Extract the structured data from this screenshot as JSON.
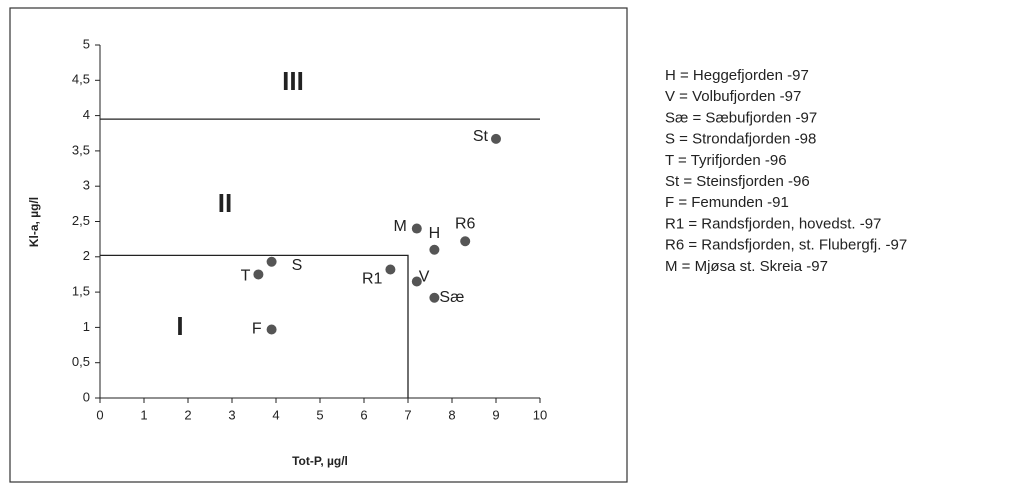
{
  "chart_data": {
    "type": "scatter",
    "x_label": "Tot-P, µg/l",
    "y_label": "Kl-a, µg/l",
    "labels": [
      "St",
      "M",
      "H",
      "R6",
      "R1",
      "V",
      "Sæ",
      "T",
      "S",
      "F"
    ],
    "x": [
      9.0,
      7.2,
      7.6,
      8.3,
      6.6,
      7.2,
      7.6,
      3.6,
      3.9,
      3.9
    ],
    "y": [
      3.67,
      2.4,
      2.1,
      2.22,
      1.82,
      1.65,
      1.42,
      1.75,
      1.93,
      0.97
    ],
    "color": "#555555",
    "xlim": [
      0,
      10
    ],
    "xticks": [
      0,
      1,
      2,
      3,
      4,
      5,
      6,
      7,
      8,
      9,
      10
    ],
    "ylim": [
      0,
      5
    ],
    "yticks": [
      0,
      {
        "value": 0.5,
        "label": "0,5"
      },
      1,
      {
        "value": 1.5,
        "label": "1,5"
      },
      2,
      {
        "value": 2.5,
        "label": "2,5"
      },
      3,
      {
        "value": 3.5,
        "label": "3,5"
      },
      4,
      {
        "value": 4.5,
        "label": "4,5"
      },
      5
    ],
    "region_lines": [
      {
        "x": [
          0,
          10
        ],
        "y": [
          3.95,
          3.95
        ]
      },
      {
        "x": [
          0,
          7,
          7
        ],
        "y": [
          2.02,
          2.02,
          0
        ]
      }
    ],
    "regions": [
      "III",
      "II",
      "I"
    ],
    "legend": [
      "H = Heggefjorden -97",
      "V = Volbufjorden -97",
      "Sæ = Sæbufjorden -97",
      "S = Strondafjorden -98",
      "T = Tyrifjorden -96",
      "St = Steinsfjorden -96",
      "F = Femunden -91",
      "R1 = Randsfjorden, hovedst.  -97",
      "R6 = Randsfjorden, st. Flubergfj. -97",
      "M = Mjøsa st. Skreia -97"
    ]
  }
}
